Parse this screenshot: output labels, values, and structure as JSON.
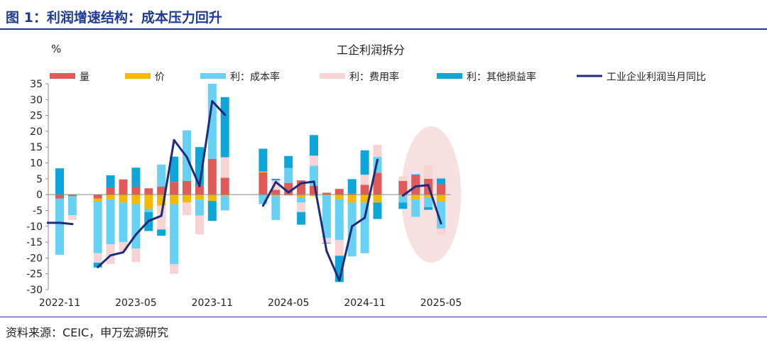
{
  "header": {
    "title": "图 1：利润增速结构：成本压力回升"
  },
  "footer": {
    "source": "资料来源：CEIC，申万宏源研究"
  },
  "chart_data": {
    "type": "bar",
    "title": "工企利润拆分",
    "ylabel": "%",
    "ylim": [
      -30,
      35
    ],
    "yticks": [
      35,
      30,
      25,
      20,
      15,
      10,
      5,
      0,
      -5,
      -10,
      -15,
      -20,
      -25,
      -30
    ],
    "x_tick_labels": [
      "2022-11",
      "2023-05",
      "2023-11",
      "2024-05",
      "2024-11",
      "2025-05"
    ],
    "categories": [
      "2022-11",
      "2022-12",
      "2023-01",
      "2023-02",
      "2023-03",
      "2023-04",
      "2023-05",
      "2023-06",
      "2023-07",
      "2023-08",
      "2023-09",
      "2023-10",
      "2023-11",
      "2023-12",
      "2024-01",
      "2024-02",
      "2024-03",
      "2024-04",
      "2024-05",
      "2024-06",
      "2024-07",
      "2024-08",
      "2024-09",
      "2024-10",
      "2024-11",
      "2024-12",
      "2025-01",
      "2025-02",
      "2025-03",
      "2025-04",
      "2025-05"
    ],
    "stacked": true,
    "legend_position": "top",
    "highlight": {
      "from": "2025-03",
      "to": "2025-05",
      "shape": "ellipse",
      "color": "#f4d5d5"
    },
    "series": [
      {
        "name": "量",
        "color": "#e05a5a",
        "values": [
          -1.2,
          -0.5,
          null,
          -1.2,
          2.3,
          4.8,
          2.5,
          2.0,
          2.5,
          4.0,
          4.3,
          3.0,
          11.3,
          5.3,
          null,
          null,
          7.0,
          1.5,
          3.7,
          4.5,
          2.8,
          0.6,
          1.8,
          0.4,
          3.1,
          6.9,
          null,
          4.3,
          6.1,
          5.0,
          3.3
        ]
      },
      {
        "name": "价",
        "color": "#f5b800",
        "values": [
          0,
          0,
          null,
          -1.0,
          -1.5,
          -2.5,
          -3.0,
          -4.5,
          -3.5,
          -3.0,
          -2.5,
          -1.6,
          -2.0,
          -0.5,
          null,
          null,
          0.3,
          -0.5,
          -0.3,
          -1.0,
          -0.5,
          -0.4,
          -1.5,
          -2.5,
          -2.5,
          -2.5,
          null,
          -0.5,
          -1.5,
          -1.0,
          -2.2
        ]
      },
      {
        "name": "利：成本率",
        "color": "#66d1f5",
        "values": [
          -17.8,
          -6.0,
          null,
          -16.3,
          -14.2,
          -12.5,
          -14.0,
          -1.0,
          7.0,
          -19.0,
          16.0,
          -5.0,
          23.7,
          -4.5,
          null,
          null,
          -3.0,
          -7.5,
          4.7,
          -1.5,
          6.3,
          -13.3,
          -12.8,
          -17.0,
          -16.0,
          5.0,
          null,
          -2.0,
          -5.5,
          -3.0,
          -8.5
        ]
      },
      {
        "name": "利：费用率",
        "color": "#f8d3d3",
        "values": [
          0,
          -1.5,
          null,
          -3.0,
          -6.2,
          -3.0,
          -4.3,
          0,
          -7.5,
          -3.0,
          -4.0,
          -6.0,
          0,
          6.5,
          null,
          null,
          0,
          3.0,
          0,
          -3.0,
          3.2,
          -1.5,
          -5.0,
          0,
          3.2,
          3.8,
          null,
          1.5,
          0,
          4.3,
          -2.0
        ]
      },
      {
        "name": "利：其他损益率",
        "color": "#0ea5d8",
        "values": [
          8.3,
          0,
          null,
          -1.5,
          3.8,
          0,
          6.0,
          -6.0,
          -2.0,
          8.0,
          0,
          12.0,
          -6.3,
          19.0,
          null,
          null,
          7.2,
          0.5,
          3.8,
          -4.0,
          6.5,
          -0.2,
          -8.3,
          4.5,
          7.7,
          -5.2,
          null,
          -2.0,
          0.3,
          -0.8,
          1.8
        ]
      }
    ],
    "line": {
      "name": "工业企业利润当月同比",
      "color": "#1f2a7a",
      "values": [
        -8.9,
        -9.3,
        null,
        -22.9,
        -19.2,
        -18.2,
        -12.6,
        -8.3,
        -6.7,
        17.2,
        11.9,
        2.7,
        29.5,
        25.2,
        null,
        null,
        -3.5,
        4.0,
        0.7,
        3.6,
        4.1,
        -17.8,
        -27.1,
        -10.0,
        -7.3,
        11.0,
        null,
        -0.3,
        2.6,
        3.0,
        -9.1
      ]
    }
  }
}
